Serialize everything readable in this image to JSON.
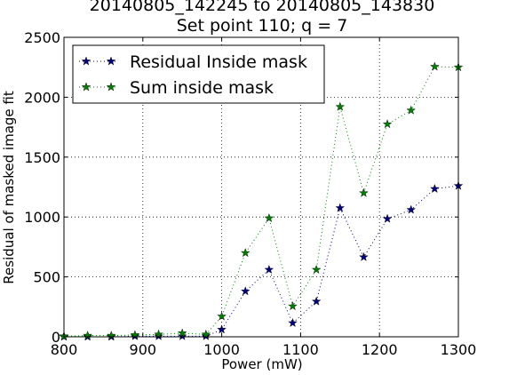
{
  "chart_data": {
    "type": "line",
    "title_lines": [
      "20140805_142245 to 20140805_143830",
      "Set point 110; q = 7"
    ],
    "xlabel": "Power (mW)",
    "ylabel": "Residual of masked image fit",
    "xlim": [
      800,
      1300
    ],
    "ylim": [
      0,
      2500
    ],
    "xticks": [
      800,
      900,
      1000,
      1100,
      1200,
      1300
    ],
    "yticks": [
      0,
      500,
      1000,
      1500,
      2000,
      2500
    ],
    "grid": true,
    "legend_position": "top-left",
    "x": [
      800,
      830,
      860,
      890,
      920,
      950,
      980,
      1000,
      1030,
      1060,
      1090,
      1120,
      1150,
      1180,
      1210,
      1240,
      1270,
      1300
    ],
    "series": [
      {
        "name": "Residual Inside mask",
        "color": "#00007f",
        "marker": "star",
        "values": [
          0,
          0,
          0,
          5,
          5,
          5,
          5,
          60,
          380,
          560,
          115,
          295,
          1075,
          665,
          985,
          1060,
          1235,
          1260
        ]
      },
      {
        "name": "Sum inside mask",
        "color": "#007f00",
        "marker": "star",
        "values": [
          5,
          10,
          10,
          15,
          20,
          30,
          20,
          170,
          700,
          990,
          255,
          560,
          1920,
          1200,
          1775,
          1890,
          2255,
          2250
        ]
      }
    ]
  }
}
